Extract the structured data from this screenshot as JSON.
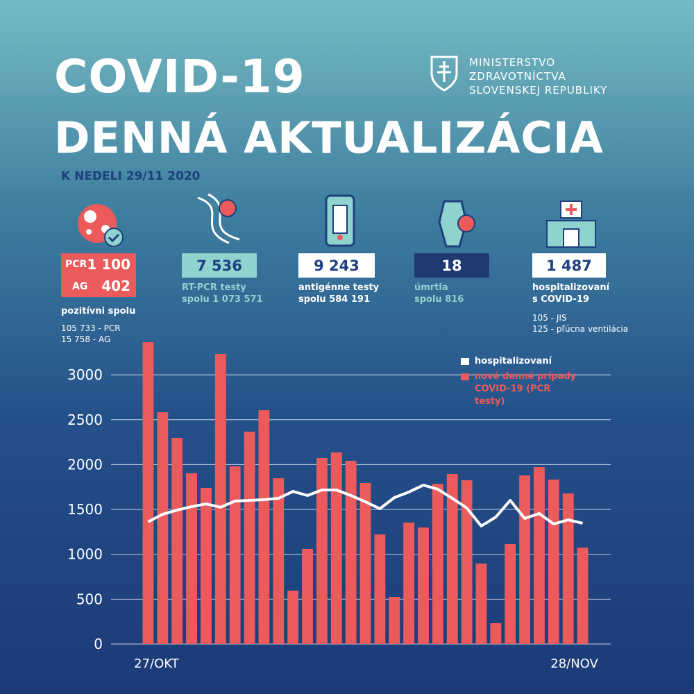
{
  "header": {
    "title": "COVID-19",
    "subtitle": "DENNÁ AKTUALIZÁCIA",
    "date": "K NEDELI 29/11 2020",
    "ministry": [
      "MINISTERSTVO",
      "ZDRAVOTNÍCTVA",
      "SLOVENSKEJ REPUBLIKY"
    ]
  },
  "stats": {
    "positive": {
      "pcr_label": "PCR",
      "pcr": "1 100",
      "ag_label": "AG",
      "ag": "402",
      "caption": "pozitívni spolu",
      "details": [
        "105 733 - PCR",
        "15 758 - AG"
      ]
    },
    "rtpcr": {
      "value": "7 536",
      "caption": [
        "RT-PCR testy",
        "spolu 1 073 571"
      ]
    },
    "antigen": {
      "value": "9 243",
      "caption": [
        "antigénne testy",
        "spolu 584 191"
      ]
    },
    "deaths": {
      "value": "18",
      "caption": [
        "úmrtia",
        "spolu 816"
      ]
    },
    "hospital": {
      "value": "1 487",
      "caption": [
        "hospitalizovaní",
        "s COVID-19"
      ],
      "details": [
        "105 - JIS",
        "125 - pľúcna ventilácia"
      ]
    }
  },
  "chart_data": {
    "type": "bar",
    "categories": [
      "27/OKT",
      null,
      null,
      null,
      null,
      null,
      null,
      null,
      null,
      null,
      null,
      null,
      null,
      null,
      null,
      null,
      null,
      null,
      null,
      null,
      null,
      null,
      null,
      null,
      null,
      null,
      null,
      null,
      null,
      null,
      "28/NOV"
    ],
    "series": [
      {
        "name": "hospitalizovaní",
        "type": "line",
        "color": "#ffffff",
        "values": [
          1361,
          1446,
          1493,
          1531,
          1562,
          1524,
          1593,
          1601,
          1609,
          1624,
          1701,
          1655,
          1717,
          1717,
          1655,
          1585,
          1508,
          1632,
          1694,
          1771,
          1725,
          1624,
          1516,
          1315,
          1415,
          1601,
          1400,
          1454,
          1338,
          1384,
          1346
        ]
      },
      {
        "name": "nové denné prípady COVID-19 (PCR testy)",
        "type": "bar",
        "color": "#eb5b5b",
        "values": [
          3364,
          2583,
          2297,
          1903,
          1740,
          3233,
          1980,
          2367,
          2606,
          1848,
          595,
          1060,
          2073,
          2135,
          2042,
          1794,
          1222,
          526,
          1353,
          1299,
          1786,
          1895,
          1825,
          897,
          232,
          1114,
          1879,
          1972,
          1833,
          1678,
          1075
        ]
      }
    ],
    "ylim": [
      0,
      3400
    ],
    "yticks": [
      0,
      500,
      1000,
      1500,
      2000,
      2500,
      3000
    ],
    "grid": true
  }
}
